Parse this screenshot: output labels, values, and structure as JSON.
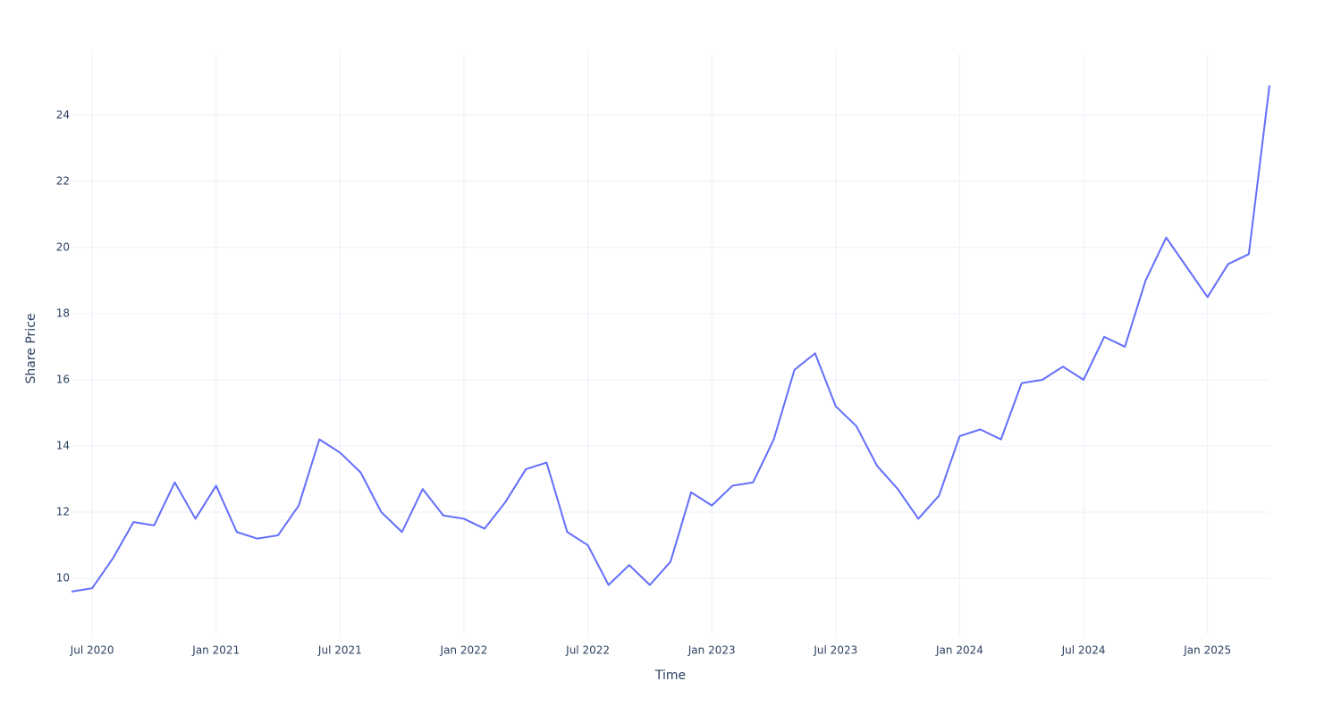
{
  "chart_data": {
    "type": "line",
    "x_label": "Time",
    "y_label": "Share Price",
    "x": [
      "2020-06",
      "2020-07",
      "2020-08",
      "2020-09",
      "2020-10",
      "2020-11",
      "2020-12",
      "2021-01",
      "2021-02",
      "2021-03",
      "2021-04",
      "2021-05",
      "2021-06",
      "2021-07",
      "2021-08",
      "2021-09",
      "2021-10",
      "2021-11",
      "2021-12",
      "2022-01",
      "2022-02",
      "2022-03",
      "2022-04",
      "2022-05",
      "2022-06",
      "2022-07",
      "2022-08",
      "2022-09",
      "2022-10",
      "2022-11",
      "2022-12",
      "2023-01",
      "2023-02",
      "2023-03",
      "2023-04",
      "2023-05",
      "2023-06",
      "2023-07",
      "2023-08",
      "2023-09",
      "2023-10",
      "2023-11",
      "2023-12",
      "2024-01",
      "2024-02",
      "2024-03",
      "2024-04",
      "2024-05",
      "2024-06",
      "2024-07",
      "2024-08",
      "2024-09",
      "2024-10",
      "2024-11",
      "2024-12",
      "2025-01",
      "2025-02",
      "2025-03",
      "2025-04"
    ],
    "series": [
      {
        "name": "Share Price",
        "color": "#636efa",
        "values": [
          9.6,
          9.7,
          10.6,
          11.7,
          11.6,
          12.9,
          11.8,
          12.8,
          11.4,
          11.2,
          11.3,
          12.2,
          14.2,
          13.8,
          13.2,
          12.0,
          11.4,
          12.7,
          11.9,
          11.8,
          11.5,
          12.3,
          13.3,
          13.5,
          11.4,
          11.0,
          9.8,
          10.4,
          9.8,
          10.5,
          12.6,
          12.2,
          12.8,
          12.9,
          14.2,
          16.3,
          16.8,
          15.2,
          14.6,
          13.4,
          12.7,
          11.8,
          12.5,
          14.3,
          14.5,
          14.2,
          15.9,
          16.0,
          16.4,
          16.0,
          17.3,
          17.0,
          19.0,
          20.3,
          19.4,
          18.5,
          19.5,
          19.8,
          24.9
        ]
      }
    ],
    "xlim": [
      "2020-06",
      "2025-04"
    ],
    "xticks": [
      {
        "value": "2020-07",
        "label": "Jul 2020"
      },
      {
        "value": "2021-01",
        "label": "Jan 2021"
      },
      {
        "value": "2021-07",
        "label": "Jul 2021"
      },
      {
        "value": "2022-01",
        "label": "Jan 2022"
      },
      {
        "value": "2022-07",
        "label": "Jul 2022"
      },
      {
        "value": "2023-01",
        "label": "Jan 2023"
      },
      {
        "value": "2023-07",
        "label": "Jul 2023"
      },
      {
        "value": "2024-01",
        "label": "Jan 2024"
      },
      {
        "value": "2024-07",
        "label": "Jul 2024"
      },
      {
        "value": "2025-01",
        "label": "Jan 2025"
      }
    ],
    "ylim": [
      8.3,
      25.86
    ],
    "yticks": [
      10,
      12,
      14,
      16,
      18,
      20,
      22,
      24
    ],
    "grid": true
  }
}
